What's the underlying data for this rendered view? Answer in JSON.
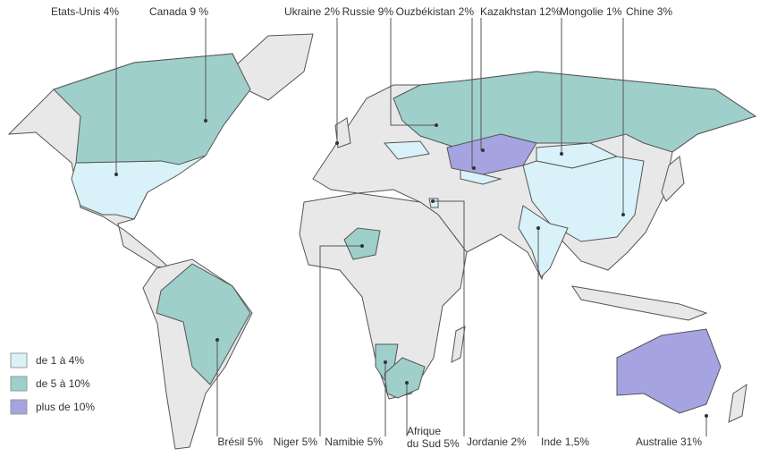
{
  "labels": [
    {
      "text": "Etats-Unis 4%",
      "color": "#d9f2f9"
    },
    {
      "text": "Canada 9 %",
      "color": "#9ecfcb"
    },
    {
      "text": "Ukraine 2%",
      "color": "#d9f2f9"
    },
    {
      "text": "Russie 9%",
      "color": "#9ecfcb"
    },
    {
      "text": "Ouzbékistan 2%",
      "color": "#d9f2f9"
    },
    {
      "text": "Kazakhstan 12%",
      "color": "#a5a3e0"
    },
    {
      "text": "Mongolie 1%",
      "color": "#d9f2f9"
    },
    {
      "text": "Chine 3%",
      "color": "#d9f2f9"
    },
    {
      "text": "Brésil 5%",
      "color": "#9ecfcb"
    },
    {
      "text": "Niger 5%",
      "color": "#9ecfcb"
    },
    {
      "text": "Namibie 5%",
      "color": "#9ecfcb"
    },
    {
      "text": [
        "Afrique",
        "du Sud 5%"
      ],
      "color": "#9ecfcb"
    },
    {
      "text": "Jordanie 2%",
      "color": "#d9f2f9"
    },
    {
      "text": "Inde 1,5%",
      "color": "#d9f2f9"
    },
    {
      "text": "Australie 31%",
      "color": "#a5a3e0"
    }
  ],
  "legend": [
    {
      "text": "de 1 à 4%",
      "color": "#d9f2f9"
    },
    {
      "text": "de 5 à 10%",
      "color": "#9ecfcb"
    },
    {
      "text": "plus de 10%",
      "color": "#a5a3e0"
    }
  ]
}
